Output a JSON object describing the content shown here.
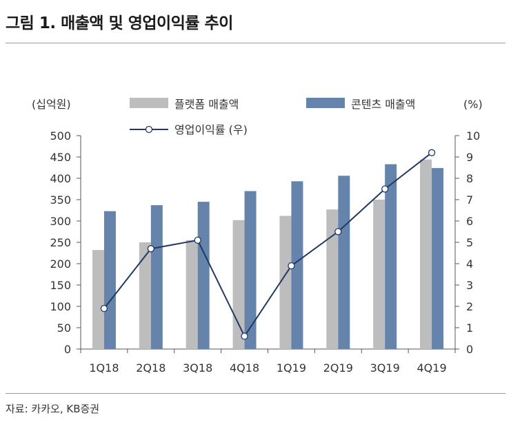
{
  "title": "그림 1. 매출액 및 영업이익률 추이",
  "source": "자료: 카카오, KB증권",
  "colors": {
    "platform": "#bdbdbd",
    "content": "#6583ab",
    "margin_line": "#1f3864",
    "axis": "#555555"
  },
  "chart_data": {
    "type": "bar",
    "title": "매출액 및 영업이익률 추이",
    "categories": [
      "1Q18",
      "2Q18",
      "3Q18",
      "4Q18",
      "1Q19",
      "2Q19",
      "3Q19",
      "4Q19"
    ],
    "left_axis": {
      "unit_label": "(십억원)",
      "ylim": [
        0,
        500
      ],
      "ticks": [
        "0",
        "50",
        "100",
        "150",
        "200",
        "250",
        "300",
        "350",
        "400",
        "450",
        "500"
      ]
    },
    "right_axis": {
      "unit_label": "(%)",
      "ylim": [
        0,
        10
      ],
      "ticks": [
        "0",
        "1",
        "2",
        "3",
        "4",
        "5",
        "6",
        "7",
        "8",
        "9",
        "10"
      ]
    },
    "series": [
      {
        "name": "플랫폼 매출액",
        "type": "bar",
        "axis": "left",
        "values": [
          232,
          250,
          255,
          302,
          312,
          327,
          350,
          444
        ]
      },
      {
        "name": "콘텐츠 매출액",
        "type": "bar",
        "axis": "left",
        "values": [
          323,
          337,
          345,
          370,
          393,
          406,
          433,
          424
        ]
      },
      {
        "name": "영업이익률 (우)",
        "type": "line",
        "axis": "right",
        "values": [
          1.9,
          4.7,
          5.1,
          0.6,
          3.9,
          5.5,
          7.5,
          9.2
        ]
      }
    ],
    "legend_position": "top",
    "grid": false
  }
}
